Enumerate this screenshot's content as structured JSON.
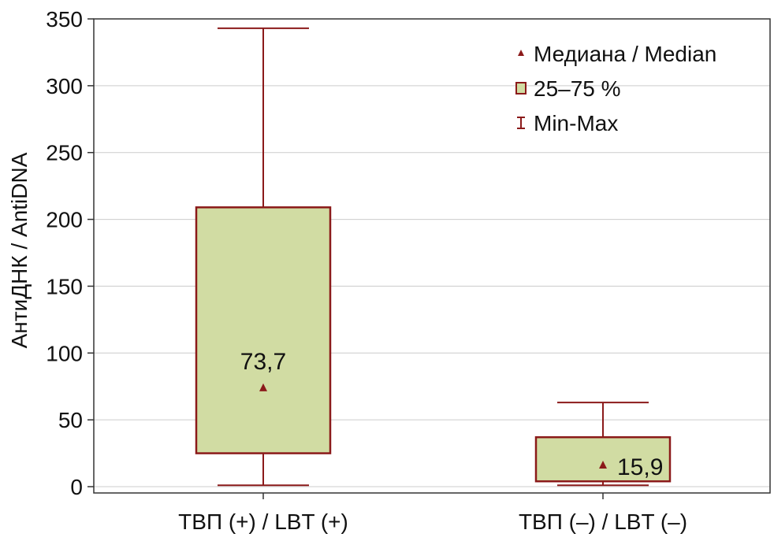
{
  "chart_data": {
    "type": "boxplot",
    "ylabel": "АнтиДНК / AntiDNA",
    "ylim": [
      0,
      350
    ],
    "yticks": [
      0,
      50,
      100,
      150,
      200,
      250,
      300,
      350
    ],
    "grid": true,
    "legend_position": "top-right",
    "legend": [
      {
        "label": "Медиана / Median",
        "symbol": "triangle"
      },
      {
        "label": "25–75 %",
        "symbol": "box"
      },
      {
        "label": "Min-Max",
        "symbol": "whisker"
      }
    ],
    "categories": [
      "ТВП (+) / LBT (+)",
      "ТВП (–) / LBT (–)"
    ],
    "boxes": [
      {
        "category": "ТВП (+) / LBT (+)",
        "min": 1,
        "q1": 25,
        "median": 73.7,
        "q3": 209,
        "max": 343,
        "median_label": "73,7"
      },
      {
        "category": "ТВП (–) / LBT (–)",
        "min": 1,
        "q1": 4,
        "median": 15.9,
        "q3": 37,
        "max": 63,
        "median_label": "15,9"
      }
    ],
    "colors": {
      "box_fill": "#d1dca3",
      "box_stroke": "#8b1a1a",
      "median": "#8b1a1a",
      "grid": "#cccccc"
    }
  }
}
